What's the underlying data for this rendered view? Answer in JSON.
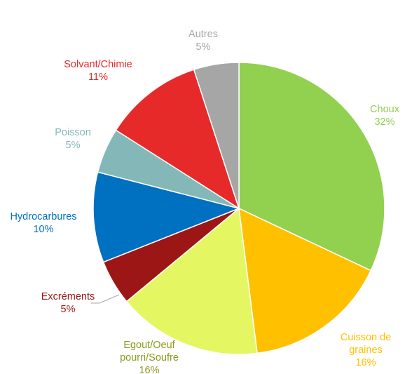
{
  "chart_data": {
    "type": "pie",
    "title": "",
    "start": "top",
    "direction": "clockwise",
    "legend": "none",
    "slices": [
      {
        "category": "Choux",
        "lines": [
          "Choux"
        ],
        "pct_label": "32%",
        "value": 32,
        "color": "#92d050",
        "label_color": "#92d050"
      },
      {
        "category": "Cuisson de graines",
        "lines": [
          "Cuisson de",
          "graines"
        ],
        "pct_label": "16%",
        "value": 16,
        "color": "#ffc000",
        "label_color": "#ffc000"
      },
      {
        "category": "Egout/Oeuf pourri/Soufre",
        "lines": [
          "Egout/Oeuf",
          "pourri/Soufre"
        ],
        "pct_label": "16%",
        "value": 16,
        "color": "#e4f763",
        "label_color": "#8a9a1c"
      },
      {
        "category": "Excréments",
        "lines": [
          "Excréments"
        ],
        "pct_label": "5%",
        "value": 5,
        "color": "#9c1616",
        "label_color": "#9c1616"
      },
      {
        "category": "Hydrocarbures",
        "lines": [
          "Hydrocarbures"
        ],
        "pct_label": "10%",
        "value": 10,
        "color": "#0070c0",
        "label_color": "#0070c0"
      },
      {
        "category": "Poisson",
        "lines": [
          "Poisson"
        ],
        "pct_label": "5%",
        "value": 5,
        "color": "#84b8b8",
        "label_color": "#84b8b8"
      },
      {
        "category": "Solvant/Chimie",
        "lines": [
          "Solvant/Chimie"
        ],
        "pct_label": "11%",
        "value": 11,
        "color": "#e62a2a",
        "label_color": "#e62a2a"
      },
      {
        "category": "Autres",
        "lines": [
          "Autres"
        ],
        "pct_label": "5%",
        "value": 5,
        "color": "#a6a6a6",
        "label_color": "#a6a6a6"
      }
    ]
  }
}
